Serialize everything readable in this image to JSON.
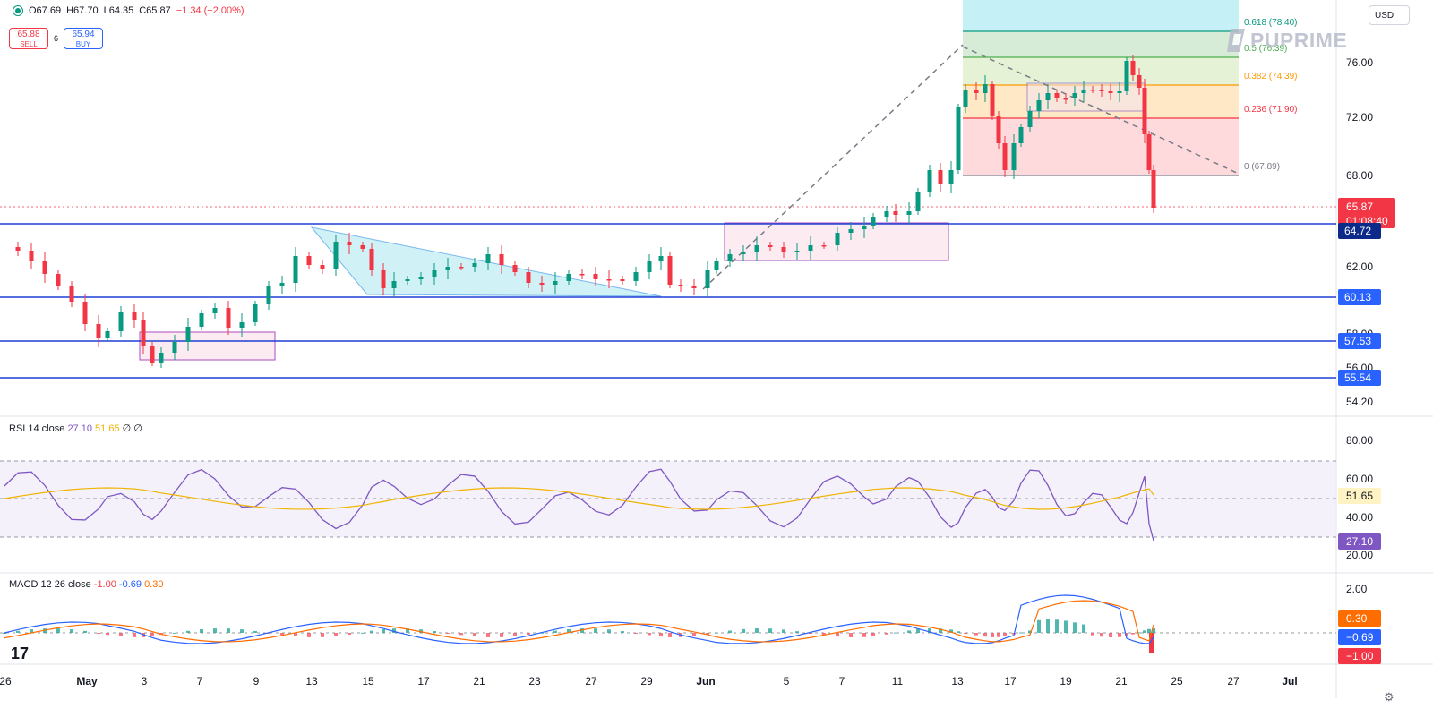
{
  "symbol_header": {
    "open": "O67.69",
    "high": "H67.70",
    "low": "L64.35",
    "close": "C65.87",
    "change": "−1.34 (−2.00%)"
  },
  "trade": {
    "sell_price": "65.88",
    "sell_label": "SELL",
    "spread": "6",
    "buy_price": "65.94",
    "buy_label": "BUY"
  },
  "currency": "USD",
  "logo_text": "PUPRIME",
  "price_axis": {
    "ticks": [
      "76.00",
      "72.00",
      "68.00",
      "62.00",
      "58.00",
      "56.00",
      "54.20"
    ],
    "current_price": "65.87",
    "countdown": "01:08:40",
    "levels": [
      "64.72",
      "60.13",
      "57.53",
      "55.54"
    ]
  },
  "fibonacci": {
    "levels": [
      "0.618 (78.40)",
      "0.5 (76.39)",
      "0.382 (74.39)",
      "0.236 (71.90)",
      "0 (67.89)"
    ],
    "colors": [
      "#089981",
      "#4caf50",
      "#ff9800",
      "#f23645",
      "#787b86"
    ]
  },
  "rsi": {
    "title": "RSI 14 close",
    "value": "27.10",
    "ma": "51.65",
    "extra": "∅ ∅",
    "ticks": [
      "80.00",
      "60.00",
      "40.00",
      "20.00"
    ]
  },
  "macd": {
    "title": "MACD 12 26 close",
    "histogram": "-1.00",
    "macd": "-0.69",
    "signal": "0.30",
    "axis_tick": "2.00",
    "labels": [
      "0.30",
      "−0.69",
      "−1.00"
    ]
  },
  "time_axis": {
    "labels": [
      "26",
      "May",
      "3",
      "7",
      "9",
      "13",
      "15",
      "17",
      "21",
      "23",
      "27",
      "29",
      "Jun",
      "5",
      "7",
      "11",
      "13",
      "17",
      "19",
      "21",
      "25",
      "27",
      "Jul"
    ]
  },
  "colors": {
    "up": "#089981",
    "down": "#f23645",
    "level_line": "#2962ff",
    "rsi": "#7e57c2",
    "rsi_ma": "#f0b400",
    "macd": "#2962ff",
    "signal": "#ff6d00"
  }
}
